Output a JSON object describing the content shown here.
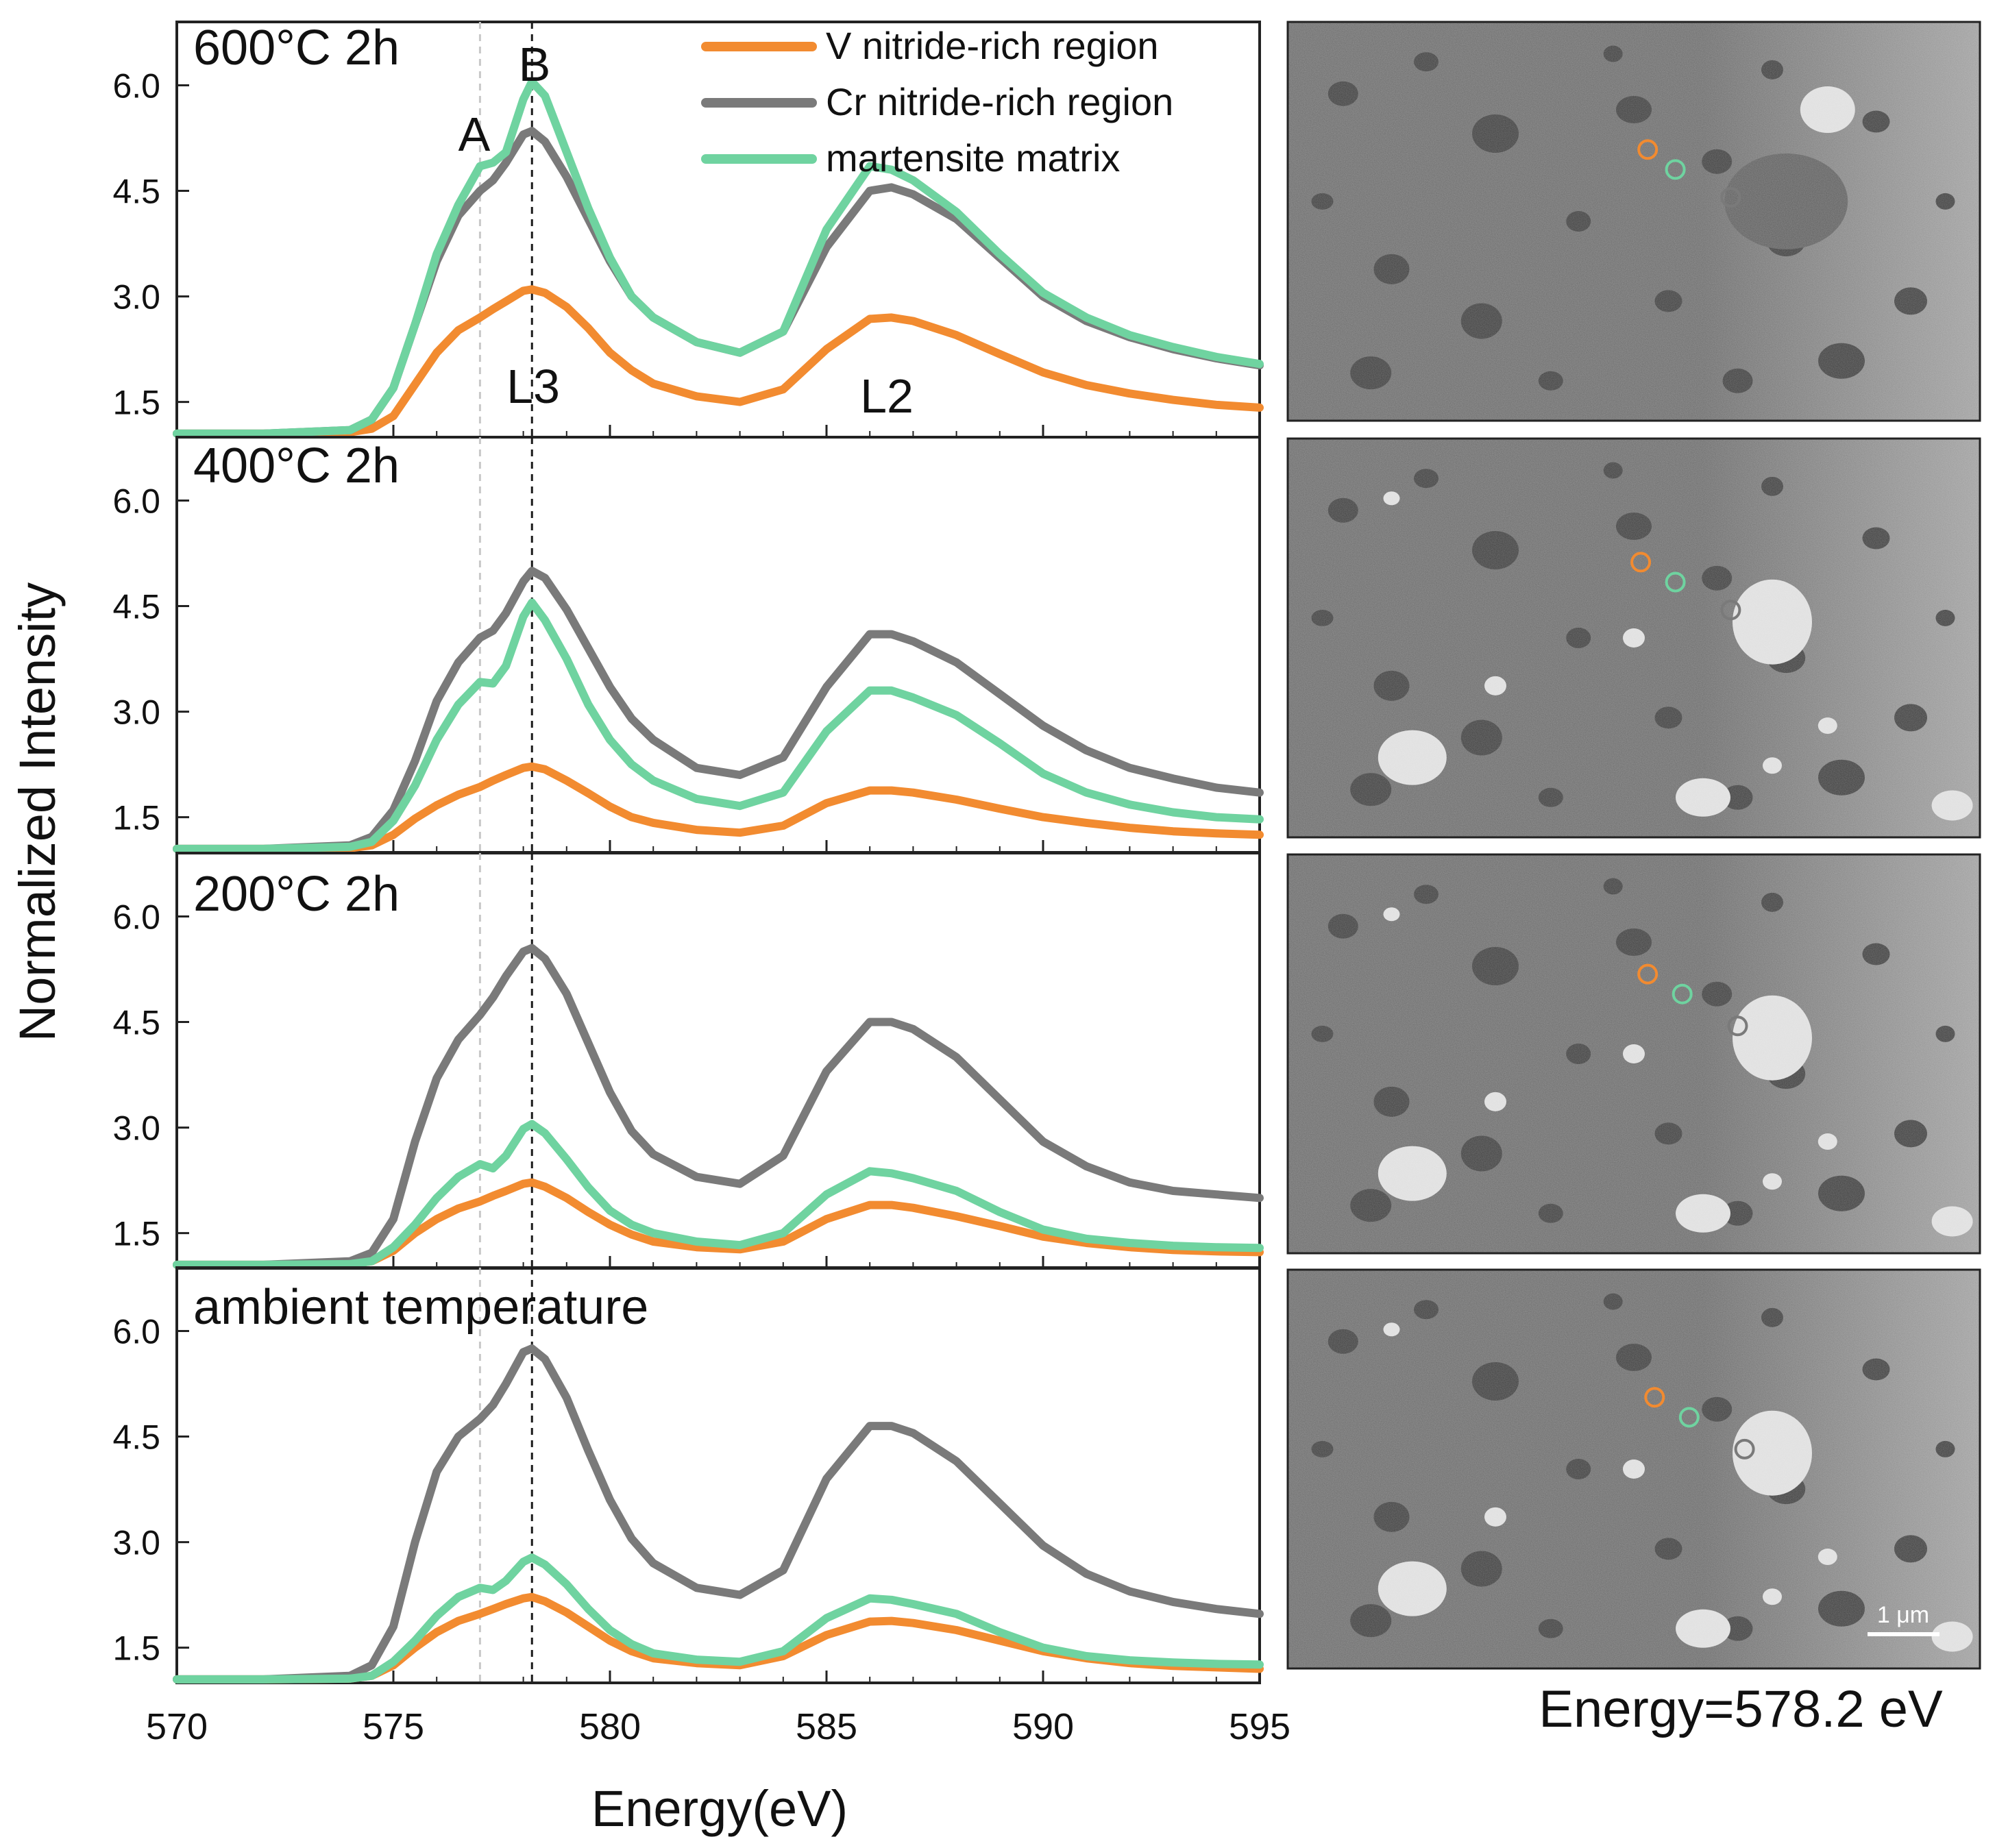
{
  "figure": {
    "ylabel": "Normalized Intensity",
    "xlabel": "Energy(eV)",
    "image_caption": "Energy=578.2 eV",
    "scale_bar_label": "1 μm",
    "colors": {
      "v_nitride": "#f28b30",
      "cr_nitride": "#7a7a7a",
      "martensite": "#6fd3a0",
      "marker_A_line": "#c8c8c8",
      "marker_B_line": "#1a1a1a"
    }
  },
  "annotations": {
    "peak_A": "A",
    "peak_B": "B",
    "edge_L3": "L3",
    "edge_L2": "L2",
    "marker_A_energy": 577.0,
    "marker_B_energy": 578.2
  },
  "chart_data": {
    "type": "line",
    "xlim": [
      570,
      595
    ],
    "ylim": [
      1.0,
      6.9
    ],
    "xticks": [
      570,
      575,
      580,
      585,
      590,
      595
    ],
    "yticks": [
      1.5,
      3.0,
      4.5,
      6.0
    ],
    "ytick_labels": [
      "1.5",
      "3.0",
      "4.5",
      "6.0"
    ],
    "legend": [
      {
        "label": "V nitride-rich region",
        "color": "#f28b30"
      },
      {
        "label": "Cr nitride-rich region",
        "color": "#7a7a7a"
      },
      {
        "label": "martensite matrix",
        "color": "#6fd3a0"
      }
    ],
    "x": [
      570,
      572,
      574,
      574.5,
      575,
      575.5,
      576,
      576.5,
      577,
      577.3,
      577.6,
      578,
      578.2,
      578.5,
      579,
      579.5,
      580,
      580.5,
      581,
      582,
      583,
      584,
      585,
      586,
      586.5,
      587,
      588,
      589,
      590,
      591,
      592,
      593,
      594,
      595
    ],
    "panels": [
      {
        "title": "600°C 2h",
        "series": [
          {
            "name": "V nitride-rich region",
            "color": "#f28b30",
            "values": [
              1.05,
              1.05,
              1.07,
              1.12,
              1.3,
              1.75,
              2.2,
              2.52,
              2.7,
              2.82,
              2.93,
              3.08,
              3.1,
              3.05,
              2.85,
              2.55,
              2.2,
              1.95,
              1.76,
              1.58,
              1.5,
              1.68,
              2.25,
              2.68,
              2.7,
              2.65,
              2.45,
              2.18,
              1.92,
              1.74,
              1.62,
              1.53,
              1.46,
              1.42
            ]
          },
          {
            "name": "Cr nitride-rich region",
            "color": "#7a7a7a",
            "values": [
              1.05,
              1.05,
              1.1,
              1.25,
              1.7,
              2.6,
              3.5,
              4.15,
              4.5,
              4.65,
              4.9,
              5.3,
              5.35,
              5.2,
              4.7,
              4.1,
              3.5,
              3.0,
              2.7,
              2.35,
              2.2,
              2.5,
              3.7,
              4.5,
              4.55,
              4.45,
              4.1,
              3.55,
              3.0,
              2.65,
              2.42,
              2.25,
              2.12,
              2.02
            ]
          },
          {
            "name": "martensite matrix",
            "color": "#6fd3a0",
            "values": [
              1.05,
              1.05,
              1.1,
              1.25,
              1.7,
              2.6,
              3.6,
              4.3,
              4.85,
              4.9,
              5.05,
              5.8,
              6.05,
              5.85,
              5.05,
              4.25,
              3.55,
              3.0,
              2.7,
              2.35,
              2.2,
              2.5,
              3.95,
              4.85,
              4.8,
              4.65,
              4.2,
              3.6,
              3.05,
              2.7,
              2.45,
              2.28,
              2.14,
              2.04
            ]
          }
        ]
      },
      {
        "title": "400°C 2h",
        "series": [
          {
            "name": "V nitride-rich region",
            "color": "#f28b30",
            "values": [
              1.05,
              1.05,
              1.06,
              1.1,
              1.25,
              1.48,
              1.67,
              1.82,
              1.93,
              2.02,
              2.1,
              2.2,
              2.22,
              2.18,
              2.02,
              1.84,
              1.65,
              1.5,
              1.42,
              1.32,
              1.28,
              1.38,
              1.7,
              1.88,
              1.88,
              1.85,
              1.75,
              1.62,
              1.5,
              1.42,
              1.35,
              1.3,
              1.27,
              1.25
            ]
          },
          {
            "name": "Cr nitride-rich region",
            "color": "#7a7a7a",
            "values": [
              1.05,
              1.05,
              1.1,
              1.22,
              1.6,
              2.3,
              3.15,
              3.7,
              4.05,
              4.15,
              4.4,
              4.85,
              5.0,
              4.9,
              4.45,
              3.9,
              3.35,
              2.9,
              2.6,
              2.2,
              2.1,
              2.35,
              3.35,
              4.1,
              4.1,
              4.0,
              3.7,
              3.25,
              2.8,
              2.45,
              2.2,
              2.05,
              1.92,
              1.85
            ]
          },
          {
            "name": "martensite matrix",
            "color": "#6fd3a0",
            "values": [
              1.05,
              1.05,
              1.08,
              1.15,
              1.45,
              1.95,
              2.6,
              3.1,
              3.42,
              3.4,
              3.65,
              4.35,
              4.55,
              4.3,
              3.75,
              3.1,
              2.6,
              2.25,
              2.02,
              1.76,
              1.66,
              1.85,
              2.72,
              3.3,
              3.3,
              3.2,
              2.95,
              2.55,
              2.12,
              1.85,
              1.68,
              1.57,
              1.5,
              1.47
            ]
          }
        ]
      },
      {
        "title": "200°C 2h",
        "series": [
          {
            "name": "V nitride-rich region",
            "color": "#f28b30",
            "values": [
              1.05,
              1.05,
              1.06,
              1.1,
              1.25,
              1.5,
              1.7,
              1.85,
              1.95,
              2.03,
              2.1,
              2.2,
              2.22,
              2.16,
              2.0,
              1.8,
              1.62,
              1.48,
              1.38,
              1.3,
              1.27,
              1.38,
              1.7,
              1.9,
              1.9,
              1.86,
              1.74,
              1.6,
              1.45,
              1.36,
              1.3,
              1.26,
              1.24,
              1.23
            ]
          },
          {
            "name": "Cr nitride-rich region",
            "color": "#7a7a7a",
            "values": [
              1.05,
              1.05,
              1.1,
              1.22,
              1.7,
              2.8,
              3.7,
              4.25,
              4.6,
              4.85,
              5.15,
              5.5,
              5.55,
              5.4,
              4.9,
              4.2,
              3.5,
              2.95,
              2.62,
              2.3,
              2.2,
              2.6,
              3.8,
              4.5,
              4.5,
              4.4,
              4.0,
              3.4,
              2.8,
              2.45,
              2.22,
              2.1,
              2.05,
              2.0
            ]
          },
          {
            "name": "martensite matrix",
            "color": "#6fd3a0",
            "values": [
              1.05,
              1.05,
              1.06,
              1.1,
              1.3,
              1.62,
              2.0,
              2.3,
              2.48,
              2.42,
              2.6,
              2.98,
              3.05,
              2.92,
              2.55,
              2.15,
              1.82,
              1.62,
              1.5,
              1.38,
              1.33,
              1.5,
              2.05,
              2.38,
              2.35,
              2.28,
              2.1,
              1.8,
              1.55,
              1.42,
              1.36,
              1.32,
              1.3,
              1.29
            ]
          }
        ]
      },
      {
        "title": "ambient temperature",
        "series": [
          {
            "name": "V nitride-rich region",
            "color": "#f28b30",
            "values": [
              1.05,
              1.05,
              1.06,
              1.1,
              1.25,
              1.5,
              1.72,
              1.88,
              1.98,
              2.05,
              2.12,
              2.2,
              2.22,
              2.16,
              2.0,
              1.8,
              1.6,
              1.45,
              1.35,
              1.28,
              1.25,
              1.38,
              1.68,
              1.87,
              1.88,
              1.85,
              1.75,
              1.6,
              1.45,
              1.35,
              1.28,
              1.24,
              1.22,
              1.2
            ]
          },
          {
            "name": "Cr nitride-rich region",
            "color": "#7a7a7a",
            "values": [
              1.05,
              1.05,
              1.1,
              1.25,
              1.8,
              3.0,
              4.0,
              4.5,
              4.75,
              4.95,
              5.25,
              5.7,
              5.75,
              5.6,
              5.05,
              4.3,
              3.6,
              3.05,
              2.7,
              2.35,
              2.25,
              2.6,
              3.9,
              4.65,
              4.65,
              4.55,
              4.15,
              3.55,
              2.95,
              2.55,
              2.3,
              2.15,
              2.05,
              1.98
            ]
          },
          {
            "name": "martensite matrix",
            "color": "#6fd3a0",
            "values": [
              1.05,
              1.05,
              1.06,
              1.1,
              1.3,
              1.6,
              1.95,
              2.22,
              2.35,
              2.32,
              2.45,
              2.72,
              2.78,
              2.68,
              2.4,
              2.05,
              1.75,
              1.55,
              1.42,
              1.33,
              1.3,
              1.45,
              1.92,
              2.2,
              2.18,
              2.12,
              1.98,
              1.72,
              1.5,
              1.38,
              1.32,
              1.29,
              1.27,
              1.26
            ]
          }
        ]
      }
    ]
  }
}
